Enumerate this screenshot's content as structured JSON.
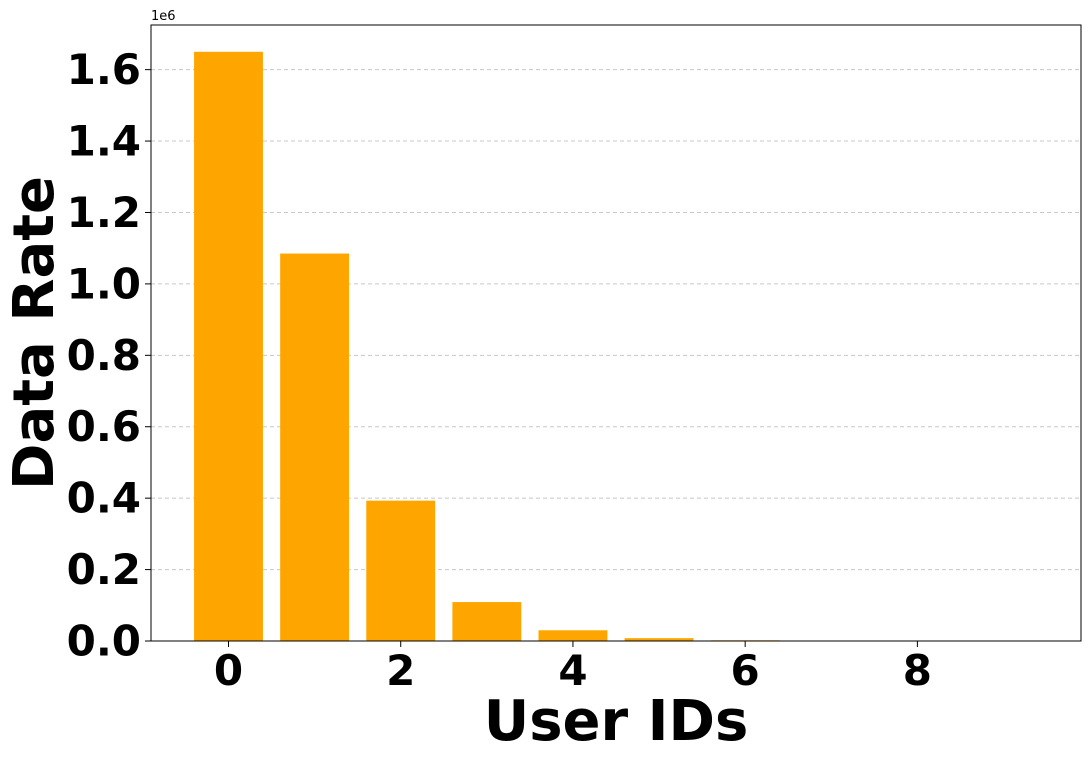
{
  "chart_data": {
    "type": "bar",
    "title": "",
    "xlabel": "User IDs",
    "ylabel": "Data Rate",
    "y_offset_label": "1e6",
    "x_ticks": [
      0,
      2,
      4,
      6,
      8
    ],
    "x_tick_labels": [
      "0",
      "2",
      "4",
      "6",
      "8"
    ],
    "y_ticks": [
      0,
      200000,
      400000,
      600000,
      800000,
      1000000,
      1200000,
      1400000,
      1600000
    ],
    "y_tick_labels": [
      "0.0",
      "0.2",
      "0.4",
      "0.6",
      "0.8",
      "1.0",
      "1.2",
      "1.4",
      "1.6"
    ],
    "xlim": [
      -0.9,
      9.9
    ],
    "ylim": [
      0,
      1725000
    ],
    "grid": {
      "axis": "y",
      "style": "dashed",
      "color": "#c8c8c8"
    },
    "bar_color": "#ffa500",
    "categories": [
      0,
      1,
      2,
      3,
      4,
      5,
      6,
      7,
      8,
      9
    ],
    "values": [
      1650000,
      1085000,
      393000,
      109000,
      30000,
      8000,
      2000,
      1000,
      300,
      100
    ]
  }
}
